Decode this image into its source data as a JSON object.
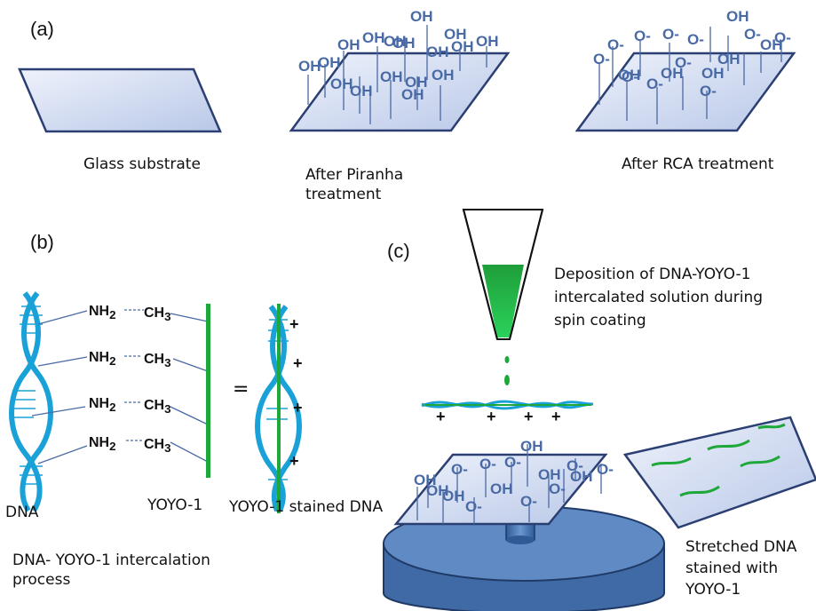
{
  "panels": {
    "a": {
      "letter": "(a)",
      "glass_label": "Glass substrate",
      "piranha_label": [
        "After Piranha",
        "treatment"
      ],
      "rca_label": "After RCA treatment",
      "oh": "OH",
      "o_minus": "O-"
    },
    "b": {
      "letter": "(b)",
      "nh2": "NH",
      "nh2_sub": "2",
      "ch3": "CH",
      "ch3_sub": "3",
      "equals": "=",
      "plus": "+",
      "dna_label": "DNA",
      "yoyo_label": "YOYO-1",
      "stained_label": "YOYO-1  stained DNA",
      "process_label": [
        "DNA- YOYO-1  intercalation",
        "process"
      ]
    },
    "c": {
      "letter": "(c)",
      "deposition_label": [
        "Deposition of DNA-YOYO-1",
        "intercalated solution during",
        "spin coating"
      ],
      "stretched_label": [
        "Stretched DNA",
        "stained with",
        "YOYO-1"
      ],
      "plus": "+"
    }
  },
  "colors": {
    "substrate_fill": "#c7d3ec",
    "substrate_edge": "#2b3f73",
    "group_text": "#4a6aa5",
    "dna": "#1aa2d8",
    "yoyo": "#1ea83a",
    "disk": "#4e7cb8",
    "disk_dark": "#2d4f82"
  },
  "icons": [
    "glass-slide-icon",
    "dna-helix-icon",
    "pipette-icon",
    "spin-coater-icon"
  ]
}
